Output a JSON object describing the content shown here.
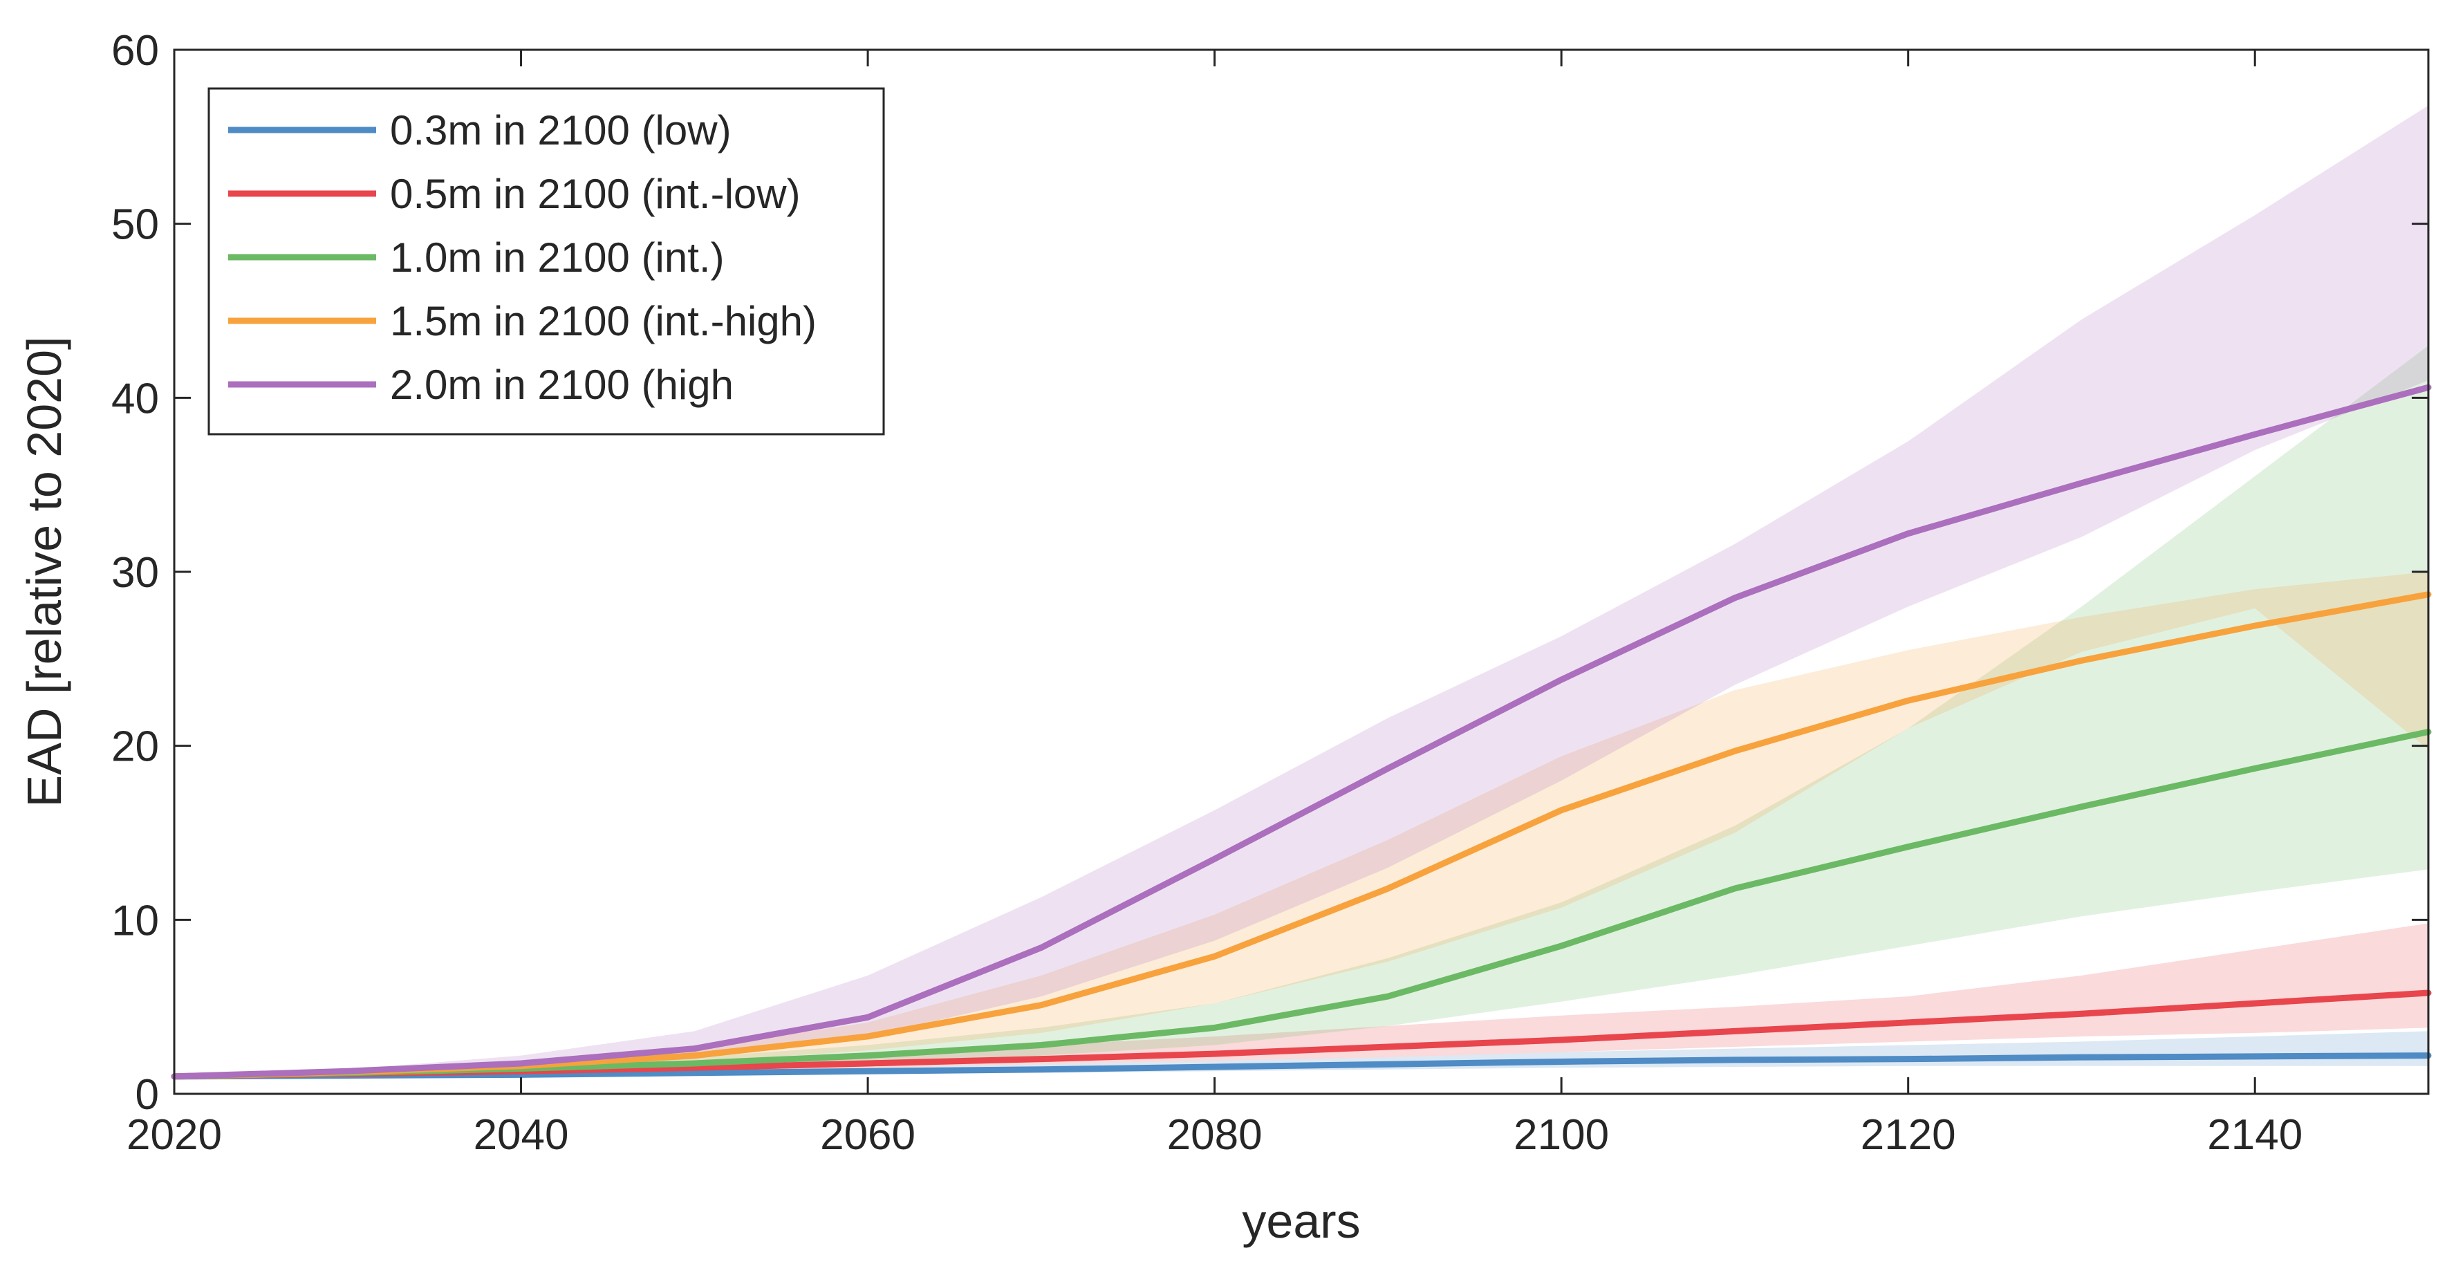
{
  "chart_data": {
    "type": "line",
    "xlabel": "years",
    "ylabel": "EAD [relative to 2020]",
    "xlim": [
      2020,
      2150
    ],
    "ylim": [
      0,
      60
    ],
    "xticks": [
      2020,
      2040,
      2060,
      2080,
      2100,
      2120,
      2140
    ],
    "yticks": [
      0,
      10,
      20,
      30,
      40,
      50,
      60
    ],
    "grid": false,
    "legend_position": "top-left",
    "x": [
      2020,
      2030,
      2040,
      2050,
      2060,
      2070,
      2080,
      2090,
      2100,
      2110,
      2120,
      2130,
      2140,
      2150
    ],
    "series": [
      {
        "name": "0.3m in 2100 (low)",
        "color": "#4f8bc4",
        "values": [
          1.0,
          1.05,
          1.1,
          1.2,
          1.3,
          1.4,
          1.55,
          1.7,
          1.85,
          1.95,
          2.0,
          2.1,
          2.15,
          2.2
        ],
        "lower": [
          1.0,
          1.0,
          1.05,
          1.1,
          1.15,
          1.2,
          1.3,
          1.4,
          1.5,
          1.55,
          1.6,
          1.6,
          1.6,
          1.6
        ],
        "upper": [
          1.0,
          1.1,
          1.2,
          1.3,
          1.5,
          1.7,
          1.9,
          2.1,
          2.4,
          2.6,
          2.8,
          3.0,
          3.3,
          3.6
        ]
      },
      {
        "name": "0.5m in 2100 (int.-low)",
        "color": "#e8454c",
        "values": [
          1.0,
          1.15,
          1.3,
          1.5,
          1.75,
          2.0,
          2.3,
          2.7,
          3.1,
          3.6,
          4.1,
          4.6,
          5.2,
          5.8
        ],
        "lower": [
          1.0,
          1.1,
          1.2,
          1.3,
          1.5,
          1.7,
          1.9,
          2.1,
          2.4,
          2.7,
          3.0,
          3.3,
          3.5,
          3.8
        ],
        "upper": [
          1.0,
          1.25,
          1.55,
          1.85,
          2.3,
          2.8,
          3.3,
          3.9,
          4.5,
          5.0,
          5.6,
          6.8,
          8.3,
          9.8
        ]
      },
      {
        "name": "1.0m in 2100 (int.)",
        "color": "#6bb964",
        "values": [
          1.0,
          1.2,
          1.45,
          1.75,
          2.2,
          2.8,
          3.8,
          5.6,
          8.5,
          11.8,
          14.2,
          16.5,
          18.7,
          20.8
        ],
        "lower": [
          1.0,
          1.15,
          1.3,
          1.5,
          1.8,
          2.2,
          2.8,
          3.9,
          5.3,
          6.8,
          8.5,
          10.2,
          11.6,
          12.9
        ],
        "upper": [
          1.0,
          1.3,
          1.6,
          2.1,
          2.8,
          3.8,
          5.2,
          7.8,
          11.0,
          15.4,
          21.0,
          28.0,
          35.5,
          43.0
        ]
      },
      {
        "name": "1.5m in 2100 (int.-high)",
        "color": "#f7a23c",
        "values": [
          1.0,
          1.25,
          1.6,
          2.2,
          3.3,
          5.1,
          7.9,
          11.8,
          16.3,
          19.7,
          22.6,
          24.9,
          26.9,
          28.7
        ],
        "lower": [
          1.0,
          1.15,
          1.4,
          1.8,
          2.5,
          3.5,
          5.2,
          7.6,
          10.7,
          15.0,
          21.0,
          25.4,
          27.9,
          19.8
        ],
        "upper": [
          1.0,
          1.35,
          1.8,
          2.6,
          4.1,
          6.8,
          10.3,
          14.6,
          19.4,
          23.2,
          25.5,
          27.4,
          29.0,
          30.0
        ]
      },
      {
        "name": "2.0m in 2100 (high",
        "color": "#ab6fbd",
        "values": [
          1.0,
          1.3,
          1.75,
          2.6,
          4.4,
          8.4,
          13.5,
          18.7,
          23.8,
          28.5,
          32.2,
          35.1,
          37.9,
          40.6
        ],
        "lower": [
          1.0,
          1.2,
          1.5,
          2.0,
          3.3,
          5.6,
          8.8,
          13.0,
          18.0,
          23.5,
          28.0,
          32.0,
          37.0,
          41.0
        ],
        "upper": [
          1.0,
          1.4,
          2.2,
          3.6,
          6.8,
          11.3,
          16.3,
          21.6,
          26.3,
          31.6,
          37.5,
          44.5,
          50.5,
          56.8
        ]
      }
    ]
  }
}
